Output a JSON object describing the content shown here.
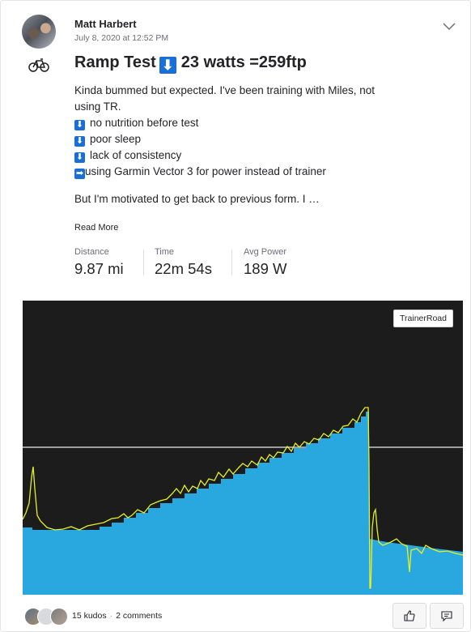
{
  "post": {
    "author": "Matt Harbert",
    "timestamp": "July 8, 2020 at 12:52 PM",
    "activity_type_icon": "bike-icon",
    "title_pre": "Ramp Test",
    "title_emoji": "⬇",
    "title_post": "23 watts =259ftp",
    "description": [
      {
        "emoji": "",
        "text": "Kinda bummed but expected. I've been training with Miles, not"
      },
      {
        "emoji": "",
        "text": "using TR."
      },
      {
        "emoji": "⬇",
        "text": "no nutrition before test"
      },
      {
        "emoji": "⬇",
        "text": "poor sleep"
      },
      {
        "emoji": "⬇",
        "text": "lack of consistency"
      },
      {
        "emoji": "➡",
        "text": "using Garmin Vector 3 for power instead of trainer"
      }
    ],
    "description_more": "But I'm motivated to get back to previous form. I …",
    "read_more": "Read More",
    "stats": [
      {
        "label": "Distance",
        "value": "9.87 mi"
      },
      {
        "label": "Time",
        "value": "22m 54s"
      },
      {
        "label": "Avg Power",
        "value": "189 W"
      }
    ],
    "chart_badge": "TrainerRoad",
    "kudos": "15 kudos",
    "comments": "2 comments",
    "colors": {
      "accent": "#1a6ed8",
      "chart_fill": "#29a8e0",
      "chart_line": "#e8f020",
      "chart_bg": "#1c1c1c"
    }
  }
}
